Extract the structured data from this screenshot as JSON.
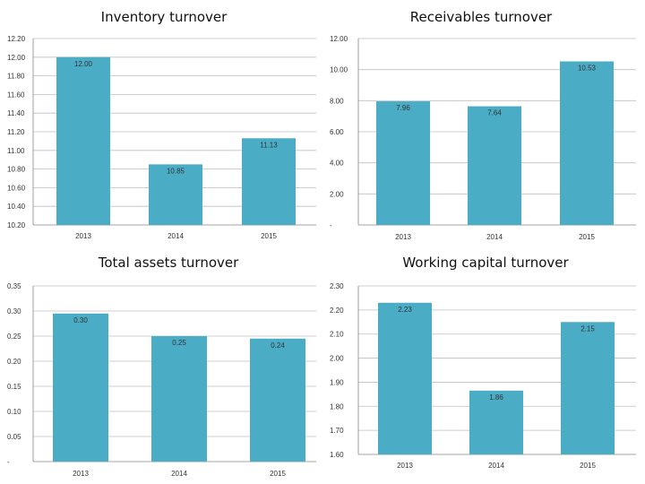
{
  "chart_data": [
    {
      "type": "bar",
      "title": "Inventory turnover",
      "categories": [
        "2013",
        "2014",
        "2015"
      ],
      "values": [
        12.0,
        10.85,
        11.13
      ],
      "value_labels": [
        "12.00",
        "10.85",
        "11.13"
      ],
      "yticks": [
        "10.20",
        "10.40",
        "10.60",
        "10.80",
        "11.00",
        "11.20",
        "11.40",
        "11.60",
        "11.80",
        "12.00",
        "12.20"
      ],
      "ylim": [
        10.2,
        12.2
      ],
      "grid": true,
      "bar_color": "#4bacc6"
    },
    {
      "type": "bar",
      "title": "Receivables turnover",
      "categories": [
        "2013",
        "2014",
        "2015"
      ],
      "values": [
        7.96,
        7.64,
        10.53
      ],
      "value_labels": [
        "7.96",
        "7.64",
        "10.53"
      ],
      "yticks": [
        "-",
        "2.00",
        "4.00",
        "6.00",
        "8.00",
        "10.00",
        "12.00"
      ],
      "ylim": [
        0,
        12
      ],
      "grid": true,
      "bar_color": "#4bacc6"
    },
    {
      "type": "bar",
      "title": "Total assets turnover",
      "categories": [
        "2013",
        "2014",
        "2015"
      ],
      "values": [
        0.295,
        0.25,
        0.245
      ],
      "value_labels": [
        "0.30",
        "0.25",
        "0.24"
      ],
      "yticks": [
        "-",
        "0.05",
        "0.10",
        "0.15",
        "0.20",
        "0.25",
        "0.30",
        "0.35"
      ],
      "ylim": [
        0,
        0.35
      ],
      "grid": true,
      "bar_color": "#4bacc6"
    },
    {
      "type": "bar",
      "title": "Working capital turnover",
      "categories": [
        "2013",
        "2014",
        "2015"
      ],
      "values": [
        2.23,
        1.865,
        2.15
      ],
      "value_labels": [
        "2.23",
        "1.86",
        "2.15"
      ],
      "yticks": [
        "1.60",
        "1.70",
        "1.80",
        "1.90",
        "2.00",
        "2.10",
        "2.20",
        "2.30"
      ],
      "ylim": [
        1.6,
        2.3
      ],
      "grid": true,
      "bar_color": "#4bacc6"
    }
  ]
}
